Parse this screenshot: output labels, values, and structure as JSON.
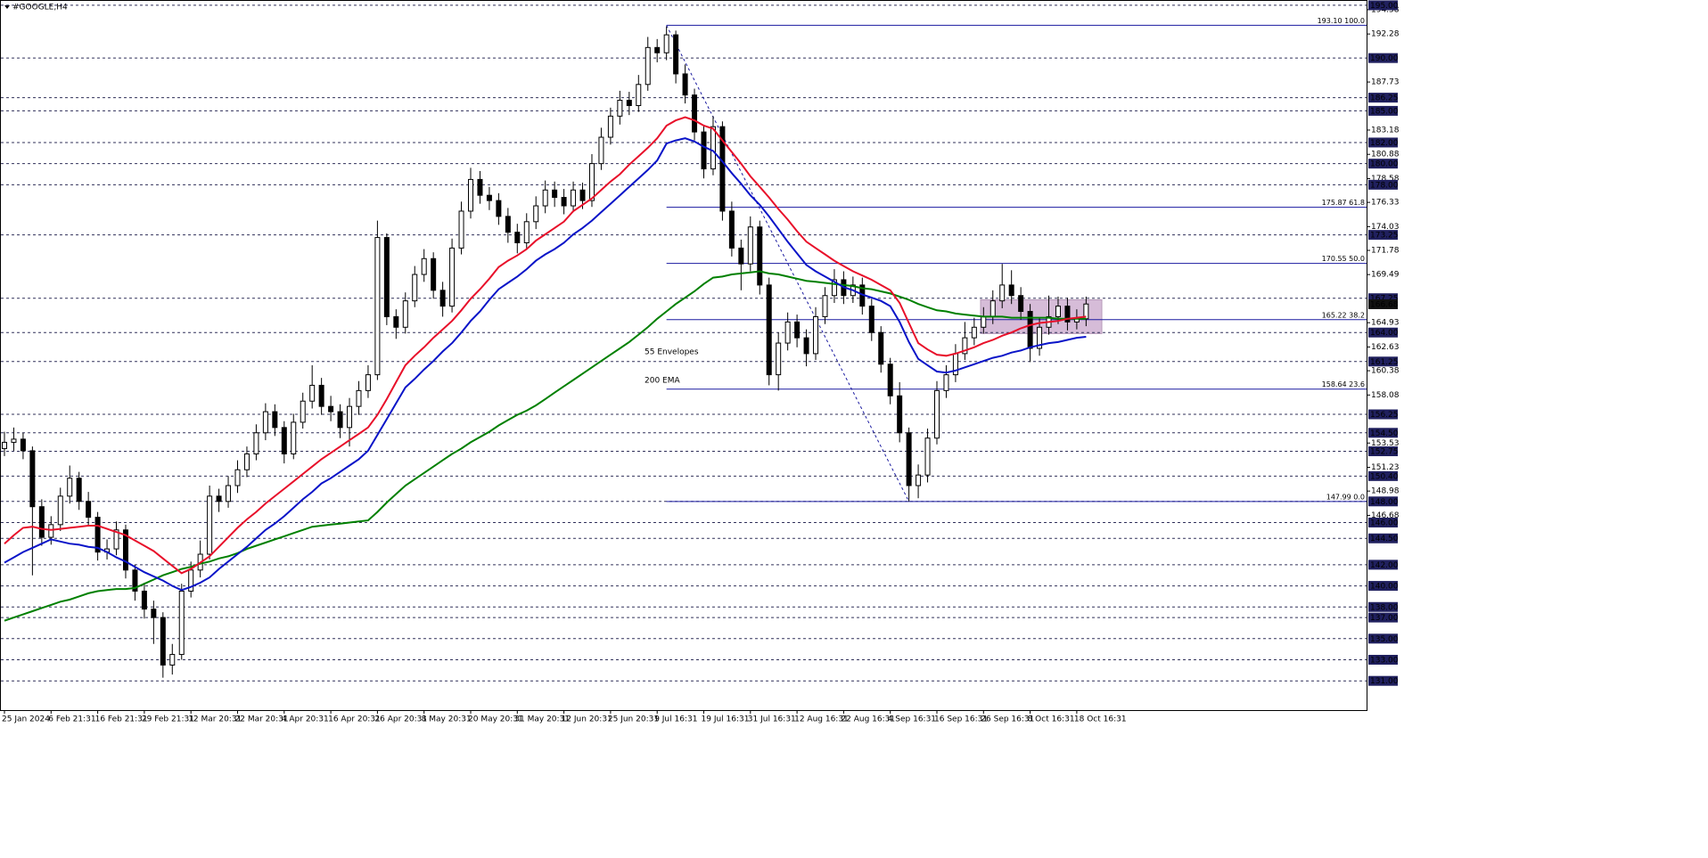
{
  "chart_data": {
    "type": "candlestick",
    "title": "#GOOGLE,H4",
    "categories": [
      "25 Jan 2024",
      null,
      null,
      null,
      null,
      "6 Feb 21:31",
      null,
      null,
      null,
      null,
      "16 Feb 21:31",
      null,
      null,
      null,
      null,
      "29 Feb 21:31",
      null,
      null,
      null,
      null,
      "12 Mar 20:31",
      null,
      null,
      null,
      null,
      "22 Mar 20:31",
      null,
      null,
      null,
      null,
      "4 Apr 20:31",
      null,
      null,
      null,
      null,
      "16 Apr 20:31",
      null,
      null,
      null,
      null,
      "26 Apr 20:31",
      null,
      null,
      null,
      null,
      "8 May 20:31",
      null,
      null,
      null,
      null,
      "20 May 20:31",
      null,
      null,
      null,
      null,
      "31 May 20:31",
      null,
      null,
      null,
      null,
      "12 Jun 20:31",
      null,
      null,
      null,
      null,
      "25 Jun 20:31",
      null,
      null,
      null,
      null,
      "9 Jul 16:31",
      null,
      null,
      null,
      null,
      "19 Jul 16:31",
      null,
      null,
      null,
      null,
      "31 Jul 16:31",
      null,
      null,
      null,
      null,
      "12 Aug 16:31",
      null,
      null,
      null,
      null,
      "22 Aug 16:31",
      null,
      null,
      null,
      null,
      "4 Sep 16:31",
      null,
      null,
      null,
      null,
      "16 Sep 16:31",
      null,
      null,
      null,
      null,
      "26 Sep 16:31",
      null,
      null,
      null,
      null,
      "8 Oct 16:31",
      null,
      null,
      null,
      null,
      "18 Oct 16:31",
      null
    ],
    "open": [
      153.0,
      153.6,
      153.9,
      152.8,
      147.5,
      144.6,
      145.8,
      148.5,
      150.2,
      148.0,
      146.5,
      143.2,
      143.5,
      145.3,
      141.5,
      139.5,
      137.8,
      137.0,
      132.5,
      133.5,
      139.5,
      141.5,
      143.0,
      148.5,
      148.0,
      149.5,
      151.0,
      152.5,
      154.5,
      156.5,
      155.0,
      152.5,
      155.5,
      157.5,
      159.0,
      157.0,
      156.5,
      155.0,
      157.0,
      158.5,
      160.0,
      173.0,
      165.5,
      164.5,
      167.0,
      169.5,
      171.0,
      168.0,
      166.5,
      172.0,
      175.5,
      178.5,
      177.0,
      176.5,
      175.0,
      173.5,
      172.5,
      174.5,
      176.0,
      177.5,
      176.8,
      176.0,
      177.5,
      176.5,
      180.0,
      182.5,
      184.5,
      186.0,
      185.5,
      187.5,
      191.0,
      190.5,
      192.2,
      188.5,
      186.5,
      183.0,
      179.5,
      183.5,
      175.5,
      172.0,
      170.5,
      174.0,
      168.5,
      160.0,
      163.0,
      165.0,
      163.5,
      162.0,
      165.5,
      167.5,
      169.0,
      167.5,
      168.5,
      166.5,
      164.0,
      161.0,
      158.0,
      154.5,
      149.5,
      150.5,
      154.0,
      158.5,
      160.0,
      162.0,
      163.5,
      164.5,
      165.5,
      167.0,
      168.5,
      167.5,
      166.0,
      162.5,
      164.5,
      165.5,
      166.5,
      165.0,
      165.3
    ],
    "high": [
      154.6,
      155.0,
      154.5,
      153.2,
      148.2,
      146.6,
      149.3,
      151.4,
      150.8,
      148.9,
      147.0,
      144.4,
      146.1,
      145.8,
      142.0,
      140.3,
      138.6,
      137.5,
      134.5,
      140.2,
      142.3,
      144.3,
      149.5,
      149.2,
      150.4,
      151.9,
      153.2,
      155.3,
      157.3,
      157.2,
      155.6,
      156.3,
      158.3,
      160.9,
      159.7,
      158.0,
      157.2,
      157.8,
      159.4,
      160.9,
      174.6,
      173.4,
      166.2,
      167.8,
      170.3,
      171.9,
      171.6,
      168.8,
      172.9,
      176.4,
      179.6,
      179.3,
      177.8,
      177.2,
      175.8,
      174.3,
      175.3,
      176.9,
      178.4,
      178.3,
      177.6,
      178.3,
      178.2,
      180.9,
      183.4,
      185.3,
      186.9,
      186.8,
      188.4,
      192.0,
      191.8,
      193.0,
      192.6,
      189.4,
      187.1,
      183.6,
      184.5,
      184.0,
      176.4,
      172.8,
      175.0,
      174.6,
      169.2,
      164.0,
      165.9,
      165.7,
      164.3,
      166.4,
      168.3,
      170.0,
      169.8,
      169.3,
      169.2,
      167.2,
      164.6,
      161.6,
      159.3,
      155.0,
      151.5,
      154.9,
      159.4,
      160.9,
      162.9,
      165.0,
      165.4,
      166.4,
      168.0,
      170.5,
      169.9,
      168.3,
      166.7,
      165.4,
      167.5,
      167.4,
      167.3,
      166.2,
      167.4
    ],
    "low": [
      152.3,
      152.8,
      152.0,
      141.0,
      143.8,
      143.9,
      145.2,
      147.8,
      147.2,
      145.7,
      142.4,
      142.5,
      142.9,
      140.7,
      138.6,
      136.9,
      134.5,
      131.3,
      131.6,
      133.0,
      138.9,
      140.8,
      142.5,
      147.0,
      147.4,
      148.8,
      150.3,
      151.9,
      153.8,
      154.2,
      151.6,
      152.0,
      154.9,
      156.8,
      156.2,
      155.6,
      154.0,
      153.2,
      156.2,
      157.8,
      159.5,
      164.7,
      163.4,
      163.9,
      166.4,
      168.8,
      167.2,
      165.5,
      165.9,
      171.4,
      174.8,
      176.2,
      175.6,
      174.2,
      172.5,
      171.5,
      171.9,
      173.8,
      175.3,
      175.9,
      175.2,
      175.4,
      175.7,
      175.9,
      179.4,
      181.8,
      183.7,
      184.6,
      184.9,
      186.9,
      189.6,
      189.8,
      187.6,
      185.7,
      182.2,
      178.6,
      178.9,
      174.6,
      171.2,
      168.0,
      169.8,
      167.6,
      159.0,
      158.5,
      162.3,
      162.6,
      160.8,
      161.4,
      164.8,
      166.8,
      166.7,
      166.8,
      165.7,
      163.2,
      160.2,
      157.2,
      153.6,
      148.0,
      148.3,
      149.8,
      153.4,
      157.8,
      159.3,
      161.4,
      162.8,
      163.9,
      164.8,
      166.3,
      166.7,
      165.2,
      161.2,
      161.8,
      163.8,
      164.8,
      164.2,
      164.3,
      164.6
    ],
    "close": [
      153.6,
      153.9,
      152.8,
      147.5,
      144.6,
      145.8,
      148.5,
      150.2,
      148.0,
      146.5,
      143.2,
      143.5,
      145.3,
      141.5,
      139.5,
      137.8,
      137.0,
      132.5,
      133.5,
      139.5,
      141.5,
      143.0,
      148.5,
      148.0,
      149.5,
      151.0,
      152.5,
      154.5,
      156.5,
      155.0,
      152.5,
      155.5,
      157.5,
      159.0,
      157.0,
      156.5,
      155.0,
      157.0,
      158.5,
      160.0,
      173.0,
      165.5,
      164.5,
      167.0,
      169.5,
      171.0,
      168.0,
      166.5,
      172.0,
      175.5,
      178.5,
      177.0,
      176.5,
      175.0,
      173.5,
      172.5,
      174.5,
      176.0,
      177.5,
      176.8,
      176.0,
      177.5,
      176.5,
      180.0,
      182.5,
      184.5,
      186.0,
      185.5,
      187.5,
      191.0,
      190.5,
      192.2,
      188.5,
      186.5,
      183.0,
      179.5,
      183.5,
      175.5,
      172.0,
      170.5,
      174.0,
      168.5,
      160.0,
      163.0,
      165.0,
      163.5,
      162.0,
      165.5,
      167.5,
      169.0,
      167.5,
      168.5,
      166.5,
      164.0,
      161.0,
      158.0,
      154.5,
      149.5,
      150.5,
      154.0,
      158.5,
      160.0,
      162.0,
      163.5,
      164.5,
      165.5,
      167.0,
      168.5,
      167.5,
      166.0,
      162.5,
      164.5,
      165.5,
      166.5,
      165.0,
      165.3,
      166.7
    ],
    "up_color": "#ffffff",
    "down_color": "#000000",
    "series": [
      {
        "name": "200 EMA",
        "color": "#008000",
        "values": [
          136.7,
          137.0,
          137.3,
          137.6,
          137.9,
          138.2,
          138.5,
          138.7,
          139.0,
          139.3,
          139.5,
          139.6,
          139.7,
          139.7,
          139.8,
          140.2,
          140.6,
          141.0,
          141.3,
          141.6,
          141.8,
          142.1,
          142.3,
          142.6,
          142.8,
          143.1,
          143.5,
          143.8,
          144.1,
          144.4,
          144.7,
          145.0,
          145.3,
          145.6,
          145.7,
          145.8,
          145.9,
          146.0,
          146.1,
          146.2,
          147.0,
          147.9,
          148.7,
          149.5,
          150.1,
          150.7,
          151.3,
          151.9,
          152.5,
          153.0,
          153.6,
          154.1,
          154.6,
          155.2,
          155.7,
          156.2,
          156.6,
          157.1,
          157.7,
          158.3,
          158.9,
          159.5,
          160.1,
          160.7,
          161.3,
          161.9,
          162.5,
          163.1,
          163.8,
          164.5,
          165.3,
          166.0,
          166.7,
          167.3,
          167.9,
          168.6,
          169.2,
          169.3,
          169.5,
          169.6,
          169.7,
          169.8,
          169.6,
          169.5,
          169.3,
          169.1,
          168.9,
          168.8,
          168.7,
          168.6,
          168.5,
          168.4,
          168.2,
          168.1,
          167.9,
          167.7,
          167.4,
          167.1,
          166.7,
          166.4,
          166.1,
          166.0,
          165.8,
          165.7,
          165.6,
          165.5,
          165.5,
          165.5,
          165.4,
          165.4,
          165.4,
          165.4,
          165.4,
          165.3,
          165.3,
          165.3,
          165.3
        ]
      },
      {
        "name": "55 Envelopes",
        "color": "#e8102a",
        "values": [
          144.0,
          144.8,
          145.5,
          145.6,
          145.4,
          145.3,
          145.4,
          145.5,
          145.6,
          145.7,
          145.7,
          145.4,
          145.1,
          144.8,
          144.3,
          143.8,
          143.3,
          142.6,
          141.9,
          141.2,
          141.6,
          142.2,
          142.8,
          143.7,
          144.6,
          145.5,
          146.3,
          147.0,
          147.8,
          148.5,
          149.2,
          149.9,
          150.6,
          151.3,
          152.0,
          152.6,
          153.2,
          153.8,
          154.4,
          155.0,
          156.2,
          157.7,
          159.3,
          160.9,
          161.8,
          162.6,
          163.5,
          164.3,
          165.1,
          166.1,
          167.2,
          168.1,
          169.1,
          170.2,
          170.8,
          171.3,
          171.9,
          172.7,
          173.3,
          173.9,
          174.5,
          175.5,
          176.1,
          176.7,
          177.5,
          178.3,
          179.0,
          179.9,
          180.7,
          181.5,
          182.4,
          183.6,
          184.1,
          184.4,
          184.1,
          183.6,
          183.3,
          182.2,
          181.1,
          180.0,
          178.8,
          177.8,
          176.8,
          175.7,
          174.7,
          173.6,
          172.6,
          172.0,
          171.4,
          170.8,
          170.3,
          169.8,
          169.4,
          169.0,
          168.5,
          168.0,
          166.8,
          164.9,
          163.0,
          162.4,
          161.9,
          161.8,
          162.0,
          162.3,
          162.6,
          163.0,
          163.3,
          163.7,
          164.0,
          164.4,
          164.7,
          164.9,
          165.0,
          165.1,
          165.3,
          165.4,
          165.5
        ]
      },
      {
        "color": "#0a14c8",
        "values": [
          142.2,
          142.7,
          143.2,
          143.6,
          144.0,
          144.4,
          144.2,
          144.0,
          143.9,
          143.7,
          143.6,
          143.2,
          142.7,
          142.3,
          141.8,
          141.3,
          140.9,
          140.5,
          140.0,
          139.6,
          139.9,
          140.3,
          140.8,
          141.6,
          142.3,
          143.0,
          143.7,
          144.5,
          145.3,
          145.9,
          146.6,
          147.4,
          148.2,
          148.9,
          149.7,
          150.2,
          150.8,
          151.4,
          152.0,
          152.8,
          154.3,
          155.8,
          157.3,
          158.8,
          159.6,
          160.5,
          161.3,
          162.2,
          163.0,
          164.0,
          165.1,
          166.0,
          167.1,
          168.1,
          168.7,
          169.3,
          170.0,
          170.8,
          171.4,
          171.9,
          172.5,
          173.3,
          173.9,
          174.6,
          175.4,
          176.2,
          177.0,
          177.8,
          178.6,
          179.4,
          180.3,
          181.9,
          182.2,
          182.4,
          182.1,
          181.6,
          181.2,
          180.2,
          179.1,
          178.1,
          177.0,
          176.1,
          175.0,
          173.8,
          172.6,
          171.5,
          170.4,
          169.8,
          169.3,
          168.8,
          168.3,
          168.0,
          167.6,
          167.3,
          167.0,
          166.5,
          165.0,
          163.1,
          161.5,
          160.9,
          160.3,
          160.2,
          160.4,
          160.7,
          161.0,
          161.3,
          161.6,
          161.8,
          162.1,
          162.3,
          162.6,
          162.8,
          163.0,
          163.1,
          163.3,
          163.5,
          163.6
        ]
      }
    ],
    "ylim": [
      128.4,
      195.5
    ],
    "yticks": [
      194.58,
      192.28,
      187.73,
      183.18,
      180.88,
      178.58,
      176.33,
      174.03,
      171.78,
      169.49,
      164.93,
      162.63,
      160.38,
      158.08,
      153.53,
      151.23,
      148.98,
      146.68
    ],
    "levels": [
      {
        "value": 195,
        "label": "195.00"
      },
      {
        "value": 190,
        "label": "190.00"
      },
      186.25,
      {
        "value": 185,
        "label": "185.00"
      },
      {
        "value": 182,
        "label": "182.00"
      },
      {
        "value": 180,
        "label": "180.00"
      },
      {
        "value": 178,
        "label": "178.00"
      },
      173.25,
      167.25,
      {
        "value": 164,
        "label": "164.00"
      },
      161.25,
      156.25,
      {
        "value": 154.5,
        "label": "154.50"
      },
      152.75,
      {
        "value": 150.4,
        "label": "150.40"
      },
      {
        "value": 148,
        "label": "148.00"
      },
      {
        "value": 146,
        "label": "146.00"
      },
      {
        "value": 144.5,
        "label": "144.50"
      },
      {
        "value": 142,
        "label": "142.00"
      },
      {
        "value": 140,
        "label": "140.00"
      },
      {
        "value": 138,
        "label": "138.00"
      },
      {
        "value": 137,
        "label": "137.00"
      },
      {
        "value": 135,
        "label": "135.00"
      },
      {
        "value": 133,
        "label": "133.00"
      },
      {
        "value": 131,
        "label": "131.00"
      }
    ],
    "last_price": 166.68,
    "fibonacci": {
      "color": "#1a1aa0",
      "levels": [
        {
          "value": 193.1,
          "label": "193.10 100.0"
        },
        {
          "value": 175.87,
          "label": "175.87 61.8"
        },
        {
          "value": 170.55,
          "label": "170.55 50.0"
        },
        {
          "value": 165.22,
          "label": "165.22 38.2"
        },
        {
          "value": 158.64,
          "label": "158.64 23.6"
        },
        {
          "value": 147.99,
          "label": "147.99 0.0"
        }
      ]
    },
    "zone": {
      "low": 163.9,
      "high": 167.1,
      "color": "#d6bcd8"
    }
  }
}
